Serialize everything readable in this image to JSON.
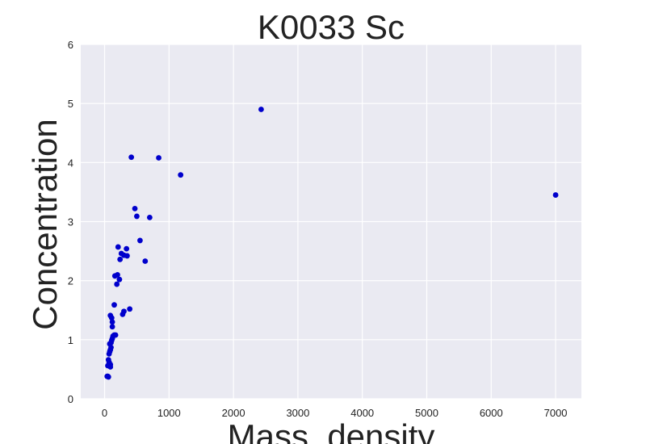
{
  "chart_data": {
    "type": "scatter",
    "title": "K0033 Sc",
    "xlabel": "Mass_density",
    "ylabel": "Concentration",
    "xlim": [
      -370,
      7400
    ],
    "ylim": [
      0,
      6
    ],
    "xticks": [
      0,
      1000,
      2000,
      3000,
      4000,
      5000,
      6000,
      7000
    ],
    "yticks": [
      0,
      1,
      2,
      3,
      4,
      5,
      6
    ],
    "grid": true,
    "background": "#eaeaf2",
    "grid_color": "#ffffff",
    "point_color": "#0000cc",
    "series": [
      {
        "x": [
          2430,
          7000,
          415,
          840,
          1180,
          470,
          500,
          700,
          550,
          210,
          260,
          300,
          340,
          350,
          240,
          630,
          160,
          200,
          230,
          190,
          150,
          390,
          300,
          280,
          90,
          110,
          120,
          120,
          150,
          170,
          130,
          120,
          110,
          100,
          80,
          100,
          90,
          80,
          70,
          60,
          70,
          90,
          80,
          90,
          50,
          40,
          60,
          50
        ],
        "y": [
          4.9,
          3.45,
          4.09,
          4.08,
          3.79,
          3.22,
          3.09,
          3.07,
          2.68,
          2.57,
          2.46,
          2.43,
          2.54,
          2.42,
          2.36,
          2.33,
          2.08,
          2.1,
          2.02,
          1.94,
          1.59,
          1.52,
          1.48,
          1.43,
          1.41,
          1.37,
          1.3,
          1.22,
          1.08,
          1.08,
          1.06,
          1.02,
          0.99,
          0.95,
          0.93,
          0.87,
          0.83,
          0.8,
          0.76,
          0.66,
          0.62,
          0.58,
          0.56,
          0.54,
          0.56,
          0.38,
          0.37,
          0.38
        ]
      }
    ]
  }
}
